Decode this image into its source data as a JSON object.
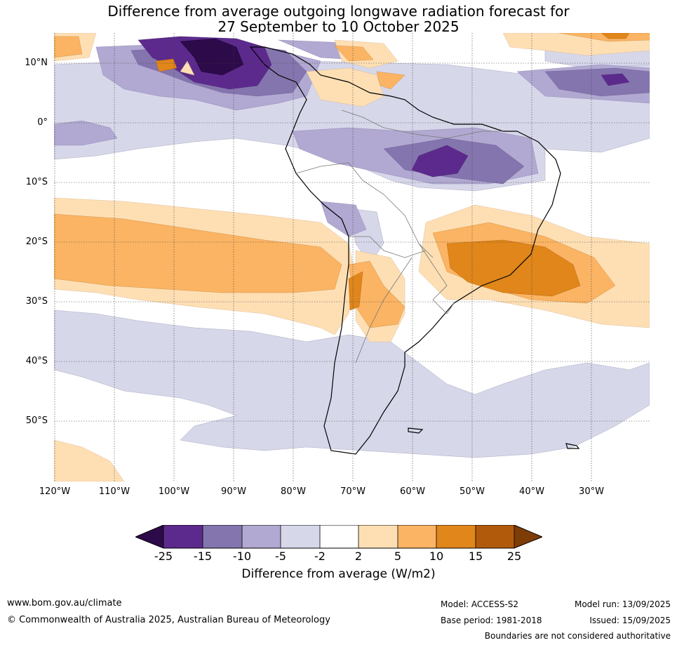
{
  "title_line1": "Difference from average outgoing longwave radiation forecast for",
  "title_line2": "27 September to 10 October 2025",
  "lat_labels": [
    "10°N",
    "0°",
    "10°S",
    "20°S",
    "30°S",
    "40°S",
    "50°S"
  ],
  "lon_labels": [
    "120°W",
    "110°W",
    "100°W",
    "90°W",
    "80°W",
    "70°W",
    "60°W",
    "50°W",
    "40°W",
    "30°W"
  ],
  "colorbar": {
    "ticks": [
      "-25",
      "-15",
      "-10",
      "-5",
      "-2",
      "2",
      "5",
      "10",
      "15",
      "25"
    ],
    "colors": [
      "#2d0a4a",
      "#5c2a8c",
      "#8575ae",
      "#b1a9d1",
      "#d7d7ea",
      "#ffffff",
      "#fedfb4",
      "#fbb463",
      "#e0861a",
      "#b25a0c",
      "#7e3c06"
    ],
    "label": "Difference from average (W/m2)"
  },
  "footer": {
    "website": "www.bom.gov.au/climate",
    "copyright": "© Commonwealth of Australia 2025, Australian Bureau of Meteorology",
    "model": "Model: ACCESS-S2",
    "base_period": "Base period: 1981-2018",
    "model_run": "Model run: 13/09/2025",
    "issued": "Issued: 15/09/2025",
    "disclaimer": "Boundaries are not considered authoritative"
  }
}
